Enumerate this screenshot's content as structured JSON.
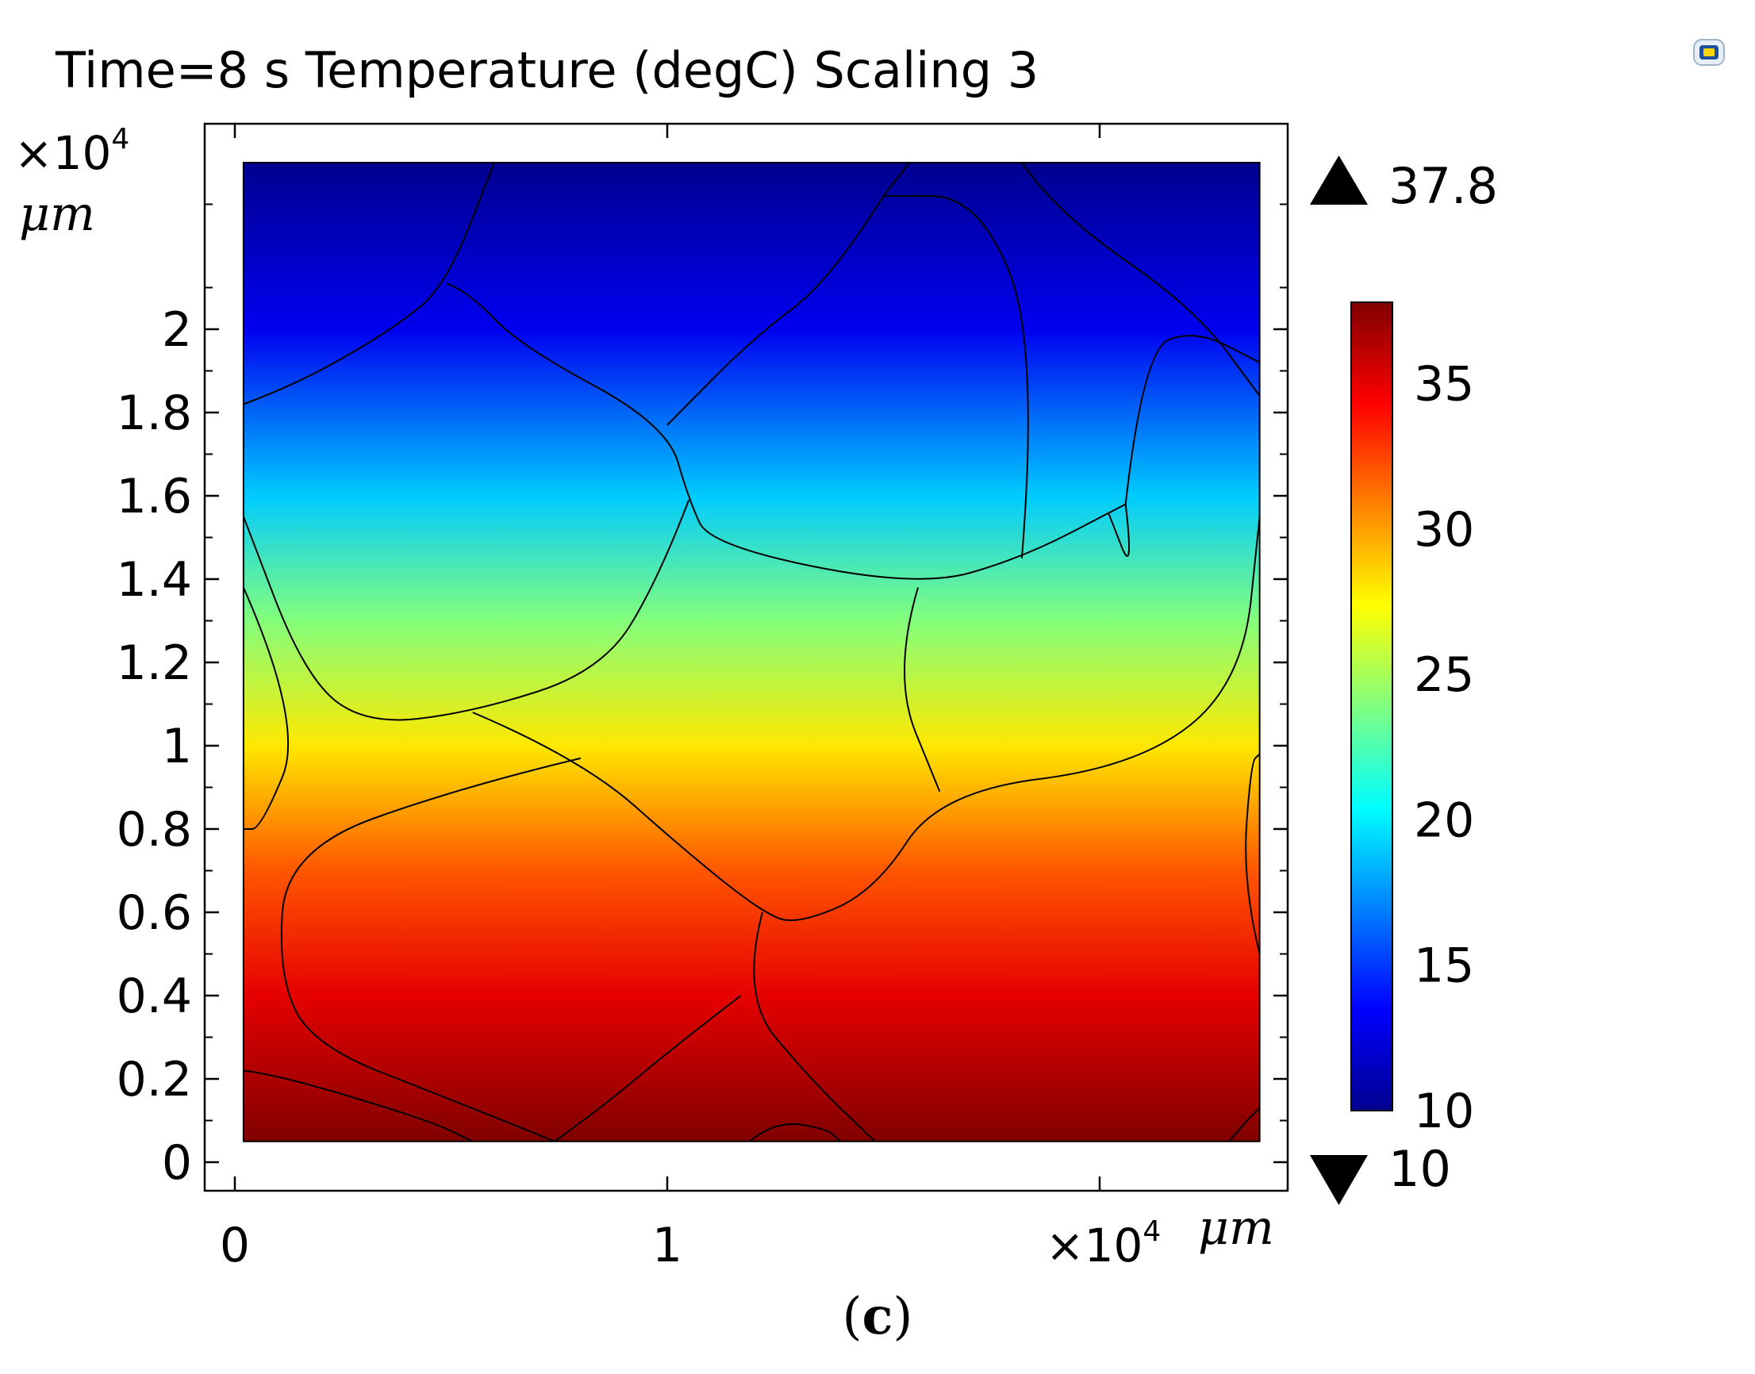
{
  "title": "Time=8 s Temperature (degC) Scaling 3",
  "caption": {
    "open": "(",
    "letter": "c",
    "close": ")"
  },
  "icons": {
    "top_right": "comsol-app-icon"
  },
  "chart_data": {
    "type": "heatmap",
    "title": "Time=8 s Temperature (degC) Scaling 3",
    "quantity": "Temperature",
    "unit": "degC",
    "time": "8 s",
    "x_axis": {
      "multiplier_label": "×10",
      "multiplier_exp": "4",
      "unit": "μm",
      "ticks": [
        0,
        1
      ],
      "tick_labels": [
        "0",
        "1"
      ],
      "range": [
        0,
        2.4
      ]
    },
    "y_axis": {
      "multiplier_label": "×10",
      "multiplier_exp": "4",
      "unit": "μm",
      "ticks": [
        0,
        0.2,
        0.4,
        0.6,
        0.8,
        1,
        1.2,
        1.4,
        1.6,
        1.8,
        2
      ],
      "tick_labels": [
        "0",
        "0.2",
        "0.4",
        "0.6",
        "0.8",
        "1",
        "1.2",
        "1.4",
        "1.6",
        "1.8",
        "2"
      ],
      "range": [
        0,
        2.4
      ]
    },
    "domain": {
      "x": [
        0.02,
        2.37
      ],
      "y": [
        0.05,
        2.4
      ]
    },
    "field": {
      "direction": "vertical",
      "profile_y": [
        2.4,
        2.0,
        1.6,
        1.3,
        1.0,
        0.7,
        0.4,
        0.05
      ],
      "profile_t": [
        10,
        13,
        19,
        24,
        28,
        32,
        35,
        37.8
      ]
    },
    "colorbar": {
      "min": 10,
      "max": 37.8,
      "max_label": "37.8",
      "min_label": "10",
      "ticks": [
        10,
        15,
        20,
        25,
        30,
        35
      ],
      "tick_labels": [
        "10",
        "15",
        "20",
        "25",
        "30",
        "35"
      ],
      "colormap": "rainbow",
      "stops": [
        "#00008f",
        "#0000ff",
        "#0080ff",
        "#00ffff",
        "#80ff80",
        "#ffff00",
        "#ff8000",
        "#ff0000",
        "#800000"
      ]
    },
    "grain_boundaries": [
      [
        [
          0.02,
          1.82
        ],
        [
          0.15,
          1.87
        ],
        [
          0.38,
          2.01
        ],
        [
          0.49,
          2.11
        ],
        [
          0.6,
          2.4
        ]
      ],
      [
        [
          0.49,
          2.11
        ],
        [
          0.54,
          2.09
        ],
        [
          0.66,
          1.96
        ],
        [
          1.0,
          1.77
        ],
        [
          1.05,
          1.59
        ],
        [
          1.1,
          1.48
        ],
        [
          1.58,
          1.38
        ],
        [
          1.82,
          1.45
        ],
        [
          2.06,
          1.58
        ]
      ],
      [
        [
          1.05,
          1.59
        ],
        [
          0.98,
          1.4
        ],
        [
          0.85,
          1.18
        ],
        [
          0.55,
          1.08
        ],
        [
          0.3,
          1.05
        ],
        [
          0.16,
          1.17
        ],
        [
          0.02,
          1.55
        ]
      ],
      [
        [
          0.02,
          1.38
        ],
        [
          0.16,
          1.05
        ],
        [
          0.06,
          0.8
        ],
        [
          0.02,
          0.8
        ]
      ],
      [
        [
          0.55,
          1.08
        ],
        [
          0.8,
          0.97
        ],
        [
          1.05,
          0.74
        ],
        [
          1.22,
          0.6
        ],
        [
          1.3,
          0.57
        ],
        [
          1.48,
          0.65
        ],
        [
          1.63,
          0.89
        ],
        [
          2.09,
          0.95
        ],
        [
          2.33,
          1.15
        ],
        [
          2.37,
          1.55
        ]
      ],
      [
        [
          1.58,
          1.38
        ],
        [
          1.52,
          1.17
        ],
        [
          1.63,
          0.89
        ]
      ],
      [
        [
          1.22,
          0.6
        ],
        [
          1.17,
          0.4
        ],
        [
          1.33,
          0.2
        ],
        [
          1.48,
          0.05
        ]
      ],
      [
        [
          0.8,
          0.97
        ],
        [
          0.52,
          0.9
        ],
        [
          0.12,
          0.75
        ],
        [
          0.1,
          0.45
        ],
        [
          0.18,
          0.28
        ],
        [
          0.5,
          0.15
        ],
        [
          0.74,
          0.05
        ]
      ],
      [
        [
          1.17,
          0.4
        ],
        [
          1.02,
          0.28
        ],
        [
          0.87,
          0.15
        ],
        [
          0.74,
          0.05
        ]
      ],
      [
        [
          2.06,
          1.58
        ],
        [
          2.08,
          1.4
        ],
        [
          2.02,
          1.56
        ]
      ],
      [
        [
          2.06,
          1.58
        ],
        [
          2.1,
          1.95
        ],
        [
          2.22,
          2.0
        ],
        [
          2.37,
          1.92
        ]
      ],
      [
        [
          1.82,
          1.45
        ],
        [
          1.86,
          1.96
        ],
        [
          1.72,
          2.32
        ],
        [
          1.5,
          2.32
        ]
      ],
      [
        [
          1.5,
          2.32
        ],
        [
          1.38,
          2.12
        ],
        [
          1.2,
          1.98
        ],
        [
          1.0,
          1.77
        ]
      ],
      [
        [
          1.56,
          2.4
        ],
        [
          1.5,
          2.32
        ]
      ],
      [
        [
          1.82,
          2.4
        ],
        [
          1.9,
          2.28
        ],
        [
          2.22,
          2.05
        ],
        [
          2.37,
          1.84
        ]
      ],
      [
        [
          0.02,
          0.22
        ],
        [
          0.1,
          0.21
        ],
        [
          0.45,
          0.1
        ],
        [
          0.55,
          0.05
        ]
      ],
      [
        [
          1.19,
          0.05
        ],
        [
          1.25,
          0.1
        ],
        [
          1.37,
          0.08
        ],
        [
          1.4,
          0.05
        ]
      ],
      [
        [
          2.3,
          0.05
        ],
        [
          2.34,
          0.1
        ],
        [
          2.37,
          0.13
        ]
      ],
      [
        [
          2.37,
          0.5
        ],
        [
          2.33,
          0.67
        ],
        [
          2.35,
          0.96
        ],
        [
          2.37,
          0.98
        ]
      ]
    ]
  }
}
